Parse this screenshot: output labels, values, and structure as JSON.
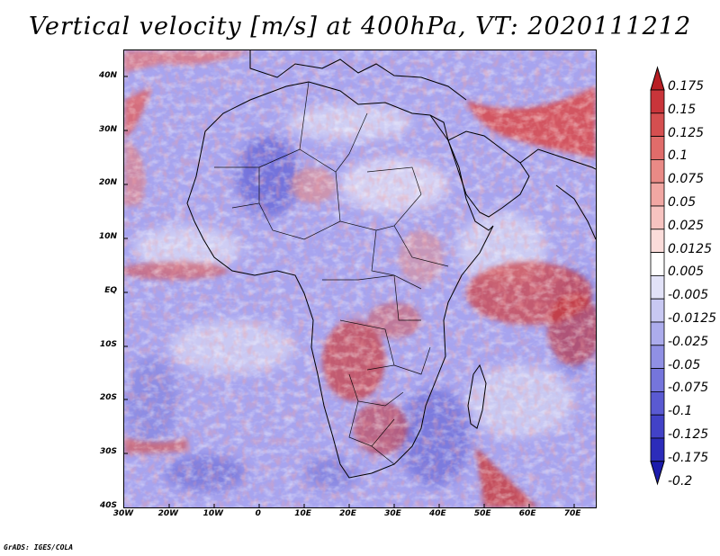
{
  "title": "Vertical velocity [m/s] at 400hPa, VT: 2020111212",
  "footer": "GrADS: IGES/COLA",
  "map": {
    "region": "Africa and surrounding oceans",
    "lon_range": [
      -30,
      75
    ],
    "lat_range": [
      -40,
      45
    ],
    "lat_labels": [
      "40N",
      "30N",
      "20N",
      "10N",
      "EQ",
      "10S",
      "20S",
      "30S",
      "40S"
    ],
    "lat_values": [
      40,
      30,
      20,
      10,
      0,
      -10,
      -20,
      -30,
      -40
    ],
    "lon_labels": [
      "30W",
      "20W",
      "10W",
      "0",
      "10E",
      "20E",
      "30E",
      "40E",
      "50E",
      "60E",
      "70E"
    ],
    "lon_values": [
      -30,
      -20,
      -10,
      0,
      10,
      20,
      30,
      40,
      50,
      60,
      70
    ]
  },
  "colorbar": {
    "levels": [
      "0.175",
      "0.15",
      "0.125",
      "0.1",
      "0.075",
      "0.05",
      "0.025",
      "0.0125",
      "0.005",
      "-0.005",
      "-0.0125",
      "-0.025",
      "-0.05",
      "-0.075",
      "-0.1",
      "-0.125",
      "-0.175",
      "-0.2"
    ],
    "colors": [
      "#b81e24",
      "#c9353a",
      "#d54f50",
      "#e06c6a",
      "#e98a86",
      "#f1a7a3",
      "#f7c3c0",
      "#fbdcda",
      "#ffffff",
      "#e2e2f8",
      "#c8c8f2",
      "#acacec",
      "#9090e4",
      "#7575dc",
      "#5a5ad2",
      "#4242c7",
      "#2c2cba",
      "#1c1cac"
    ]
  }
}
